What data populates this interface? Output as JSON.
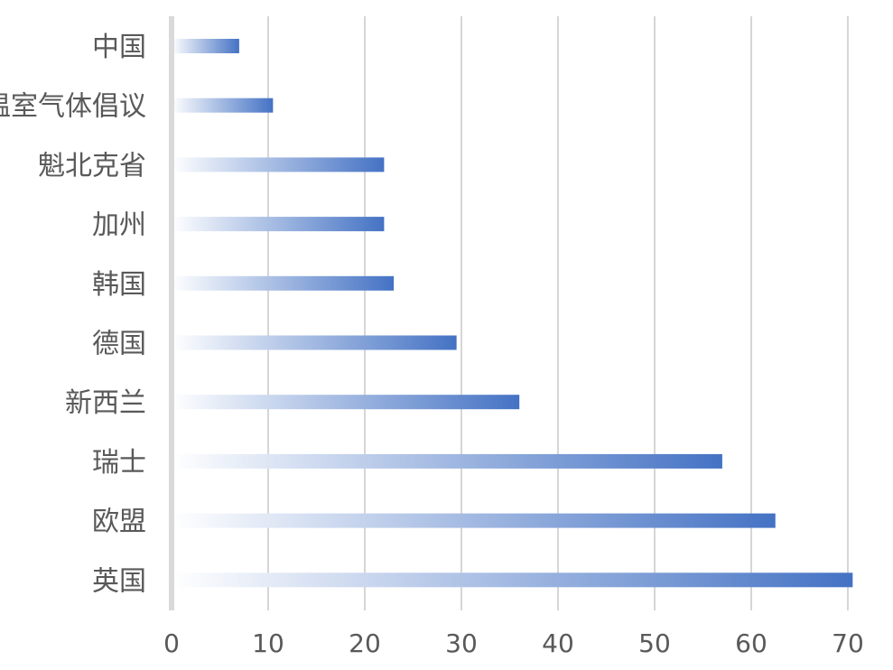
{
  "chart_data": {
    "type": "bar",
    "orientation": "horizontal",
    "title": "",
    "xlabel": "",
    "ylabel": "",
    "categories": [
      "中国",
      "温室气体倡议",
      "魁北克省",
      "加州",
      "韩国",
      "德国",
      "新西兰",
      "瑞士",
      "欧盟",
      "英国"
    ],
    "values": [
      7,
      10.5,
      22,
      22,
      23,
      29.5,
      36,
      57,
      62.5,
      70.5
    ],
    "xlim": [
      0,
      70
    ],
    "xticks": [
      0,
      10,
      20,
      30,
      40,
      50,
      60,
      70
    ],
    "xtick_labels": [
      "0",
      "10",
      "20",
      "30",
      "40",
      "50",
      "60",
      "70"
    ],
    "grid": "vertical",
    "legend": "none",
    "colors": {
      "bar": "#4472c4",
      "bar_fade": "#ffffff",
      "grid": "#bfbfbf",
      "axis": "#d9d9d9",
      "text": "#595959"
    }
  }
}
